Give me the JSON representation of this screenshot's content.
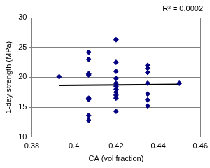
{
  "chart_data": {
    "type": "scatter",
    "annotation": "R² = 0.0002",
    "x_label": "CA (vol fraction)",
    "y_label": "1-day strength (MPa)",
    "xlim": [
      0.38,
      0.46
    ],
    "xticks": [
      0.38,
      0.4,
      0.42,
      0.44,
      0.46
    ],
    "ylim": [
      10,
      30
    ],
    "yticks": [
      10,
      15,
      20,
      25,
      30
    ],
    "grid": "y",
    "series": [
      {
        "type": "scatter",
        "marker": "diamond",
        "color": "#000080",
        "x": [
          0.393,
          0.407,
          0.407,
          0.407,
          0.407,
          0.407,
          0.407,
          0.407,
          0.407,
          0.42,
          0.42,
          0.42,
          0.42,
          0.42,
          0.42,
          0.42,
          0.42,
          0.42,
          0.42,
          0.42,
          0.435,
          0.435,
          0.435,
          0.435,
          0.435,
          0.435,
          0.435,
          0.45
        ],
        "values": [
          20.1,
          24.2,
          23.0,
          20.6,
          20.4,
          16.5,
          16.3,
          13.6,
          12.8,
          26.3,
          22.5,
          21.0,
          19.8,
          19.0,
          18.5,
          18.0,
          17.5,
          17.0,
          16.5,
          14.3,
          22.0,
          21.5,
          20.8,
          19.0,
          17.2,
          16.2,
          15.2,
          19.0
        ]
      },
      {
        "type": "line",
        "line_style": "solid",
        "color": "#000000",
        "x": [
          0.393,
          0.45
        ],
        "values": [
          18.65,
          18.8
        ]
      }
    ]
  }
}
